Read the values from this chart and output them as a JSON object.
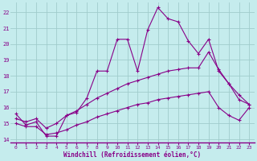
{
  "xlabel": "Windchill (Refroidissement éolien,°C)",
  "bg_color": "#c5eced",
  "grid_color": "#a0cccc",
  "line_color": "#880088",
  "xlim": [
    -0.5,
    23.5
  ],
  "ylim": [
    13.8,
    22.6
  ],
  "yticks": [
    14,
    15,
    16,
    17,
    18,
    19,
    20,
    21,
    22
  ],
  "xticks": [
    0,
    1,
    2,
    3,
    4,
    5,
    6,
    7,
    8,
    9,
    10,
    11,
    12,
    13,
    14,
    15,
    16,
    17,
    18,
    19,
    20,
    21,
    22,
    23
  ],
  "series1_x": [
    0,
    1,
    2,
    3,
    4,
    5,
    6,
    7,
    8,
    9,
    10,
    11,
    12,
    13,
    14,
    15,
    16,
    17,
    18,
    19,
    20,
    21,
    22,
    23
  ],
  "series1_y": [
    15.6,
    14.9,
    15.1,
    14.2,
    14.2,
    15.5,
    15.7,
    16.6,
    18.3,
    18.3,
    20.3,
    20.3,
    18.3,
    20.9,
    22.3,
    21.6,
    21.4,
    20.2,
    19.4,
    20.3,
    18.3,
    17.5,
    16.8,
    16.2
  ],
  "series2_x": [
    0,
    1,
    2,
    3,
    4,
    5,
    6,
    7,
    8,
    9,
    10,
    11,
    12,
    13,
    14,
    15,
    16,
    17,
    18,
    19,
    20,
    21,
    22,
    23
  ],
  "series2_y": [
    15.3,
    15.1,
    15.3,
    14.7,
    15.0,
    15.5,
    15.8,
    16.2,
    16.6,
    16.9,
    17.2,
    17.5,
    17.7,
    17.9,
    18.1,
    18.3,
    18.4,
    18.5,
    18.5,
    19.5,
    18.4,
    17.5,
    16.5,
    16.2
  ],
  "series3_x": [
    0,
    1,
    2,
    3,
    4,
    5,
    6,
    7,
    8,
    9,
    10,
    11,
    12,
    13,
    14,
    15,
    16,
    17,
    18,
    19,
    20,
    21,
    22,
    23
  ],
  "series3_y": [
    15.0,
    14.8,
    14.8,
    14.3,
    14.4,
    14.6,
    14.9,
    15.1,
    15.4,
    15.6,
    15.8,
    16.0,
    16.2,
    16.3,
    16.5,
    16.6,
    16.7,
    16.8,
    16.9,
    17.0,
    16.0,
    15.5,
    15.2,
    16.0
  ]
}
